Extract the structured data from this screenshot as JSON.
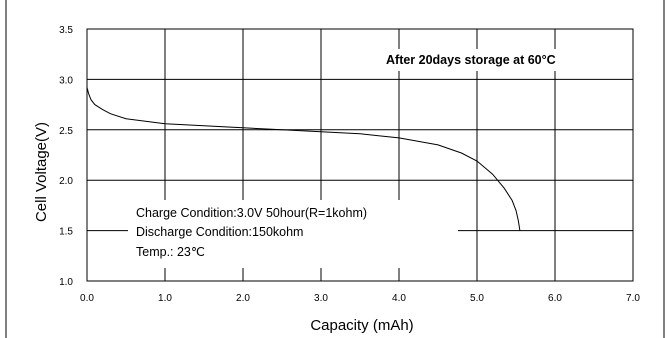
{
  "chart_data": {
    "type": "line",
    "title": "",
    "xlabel": "Capacity (mAh)",
    "ylabel": "Cell Voltage(V)",
    "xlim": [
      0.0,
      7.0
    ],
    "ylim": [
      1.0,
      3.5
    ],
    "x_ticks": [
      "0.0",
      "1.0",
      "2.0",
      "3.0",
      "4.0",
      "5.0",
      "6.0",
      "7.0"
    ],
    "y_ticks": [
      "1.0",
      "1.5",
      "2.0",
      "2.5",
      "3.0",
      "3.5"
    ],
    "grid": true,
    "series": [
      {
        "x": [
          0.0,
          0.02,
          0.05,
          0.1,
          0.2,
          0.3,
          0.5,
          0.8,
          1.0,
          1.5,
          2.0,
          2.5,
          3.0,
          3.5,
          4.0,
          4.5,
          4.8,
          5.0,
          5.2,
          5.35,
          5.45,
          5.5,
          5.53,
          5.55
        ],
        "y": [
          2.92,
          2.86,
          2.8,
          2.75,
          2.7,
          2.66,
          2.61,
          2.58,
          2.56,
          2.54,
          2.52,
          2.5,
          2.48,
          2.46,
          2.42,
          2.35,
          2.27,
          2.19,
          2.06,
          1.92,
          1.8,
          1.7,
          1.6,
          1.5
        ]
      }
    ],
    "annotations": {
      "storage": "After 20days storage at 60°C",
      "charge": "Charge Condition:3.0V 50hour(R=1kohm)",
      "discharge": "Discharge Condition:150kohm",
      "temp": "Temp.: 23℃"
    }
  }
}
